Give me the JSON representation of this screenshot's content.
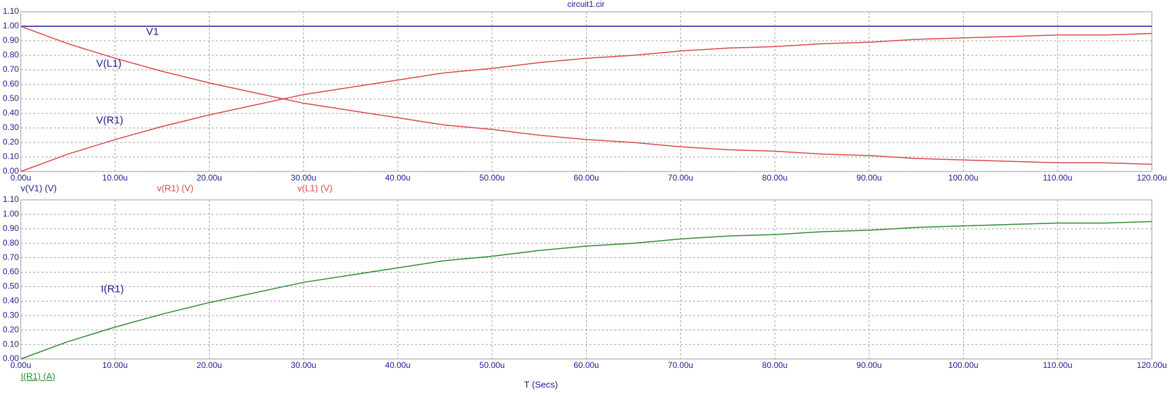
{
  "chart_data": [
    {
      "type": "line",
      "title": "circuit1.cir",
      "x": [
        0,
        5,
        10,
        15,
        20,
        25,
        30,
        35,
        40,
        45,
        50,
        55,
        60,
        65,
        70,
        75,
        80,
        85,
        90,
        95,
        100,
        105,
        110,
        115,
        120
      ],
      "series": [
        {
          "name": "v(V1) (V)",
          "color": "#1c1c8e",
          "values": [
            1.0,
            1.0,
            1.0,
            1.0,
            1.0,
            1.0,
            1.0,
            1.0,
            1.0,
            1.0,
            1.0,
            1.0,
            1.0,
            1.0,
            1.0,
            1.0,
            1.0,
            1.0,
            1.0,
            1.0,
            1.0,
            1.0,
            1.0,
            1.0,
            1.0
          ]
        },
        {
          "name": "v(R1) (V)",
          "color": "#d84848",
          "values": [
            0.0,
            0.12,
            0.22,
            0.31,
            0.39,
            0.46,
            0.53,
            0.58,
            0.63,
            0.68,
            0.71,
            0.75,
            0.78,
            0.8,
            0.83,
            0.85,
            0.86,
            0.88,
            0.89,
            0.91,
            0.92,
            0.93,
            0.94,
            0.94,
            0.95
          ]
        },
        {
          "name": "v(L1) (V)",
          "color": "#d84848",
          "values": [
            1.0,
            0.88,
            0.78,
            0.69,
            0.61,
            0.54,
            0.47,
            0.42,
            0.37,
            0.32,
            0.29,
            0.25,
            0.22,
            0.2,
            0.17,
            0.15,
            0.14,
            0.12,
            0.11,
            0.09,
            0.08,
            0.07,
            0.06,
            0.06,
            0.05
          ]
        }
      ],
      "annotations": [
        {
          "text": "V1",
          "x": 13.3,
          "y": 0.96
        },
        {
          "text": "V(L1)",
          "x": 8,
          "y": 0.74
        },
        {
          "text": "V(R1)",
          "x": 8,
          "y": 0.35
        }
      ],
      "xlim": [
        0,
        120
      ],
      "xticks": [
        {
          "value": 0,
          "label": "0.00u"
        },
        {
          "value": 10,
          "label": "10.00u"
        },
        {
          "value": 20,
          "label": "20.00u"
        },
        {
          "value": 30,
          "label": "30.00u"
        },
        {
          "value": 40,
          "label": "40.00u"
        },
        {
          "value": 50,
          "label": "50.00u"
        },
        {
          "value": 60,
          "label": "60.00u"
        },
        {
          "value": 70,
          "label": "70.00u"
        },
        {
          "value": 80,
          "label": "80.00u"
        },
        {
          "value": 90,
          "label": "90.00u"
        },
        {
          "value": 100,
          "label": "100.00u"
        },
        {
          "value": 110,
          "label": "110.00u"
        },
        {
          "value": 120,
          "label": "120.00u"
        }
      ],
      "ylim": [
        0,
        1.1
      ],
      "yticks": [
        {
          "value": 0,
          "label": "0.00"
        },
        {
          "value": 0.1,
          "label": "0.10"
        },
        {
          "value": 0.2,
          "label": "0.20"
        },
        {
          "value": 0.3,
          "label": "0.30"
        },
        {
          "value": 0.4,
          "label": "0.40"
        },
        {
          "value": 0.5,
          "label": "0.50"
        },
        {
          "value": 0.6,
          "label": "0.60"
        },
        {
          "value": 0.7,
          "label": "0.70"
        },
        {
          "value": 0.8,
          "label": "0.80"
        },
        {
          "value": 0.9,
          "label": "0.90"
        },
        {
          "value": 1.0,
          "label": "1.00"
        },
        {
          "value": 1.1,
          "label": "1.10"
        }
      ],
      "grid": true
    },
    {
      "type": "line",
      "xlabel": "T (Secs)",
      "x": [
        0,
        5,
        10,
        15,
        20,
        25,
        30,
        35,
        40,
        45,
        50,
        55,
        60,
        65,
        70,
        75,
        80,
        85,
        90,
        95,
        100,
        105,
        110,
        115,
        120
      ],
      "series": [
        {
          "name": "I(R1) (A)",
          "color": "#2f8a2f",
          "values": [
            0.0,
            0.12,
            0.22,
            0.31,
            0.39,
            0.46,
            0.53,
            0.58,
            0.63,
            0.68,
            0.71,
            0.75,
            0.78,
            0.8,
            0.83,
            0.85,
            0.86,
            0.88,
            0.89,
            0.91,
            0.92,
            0.93,
            0.94,
            0.94,
            0.95
          ]
        }
      ],
      "annotations": [
        {
          "text": "I(R1)",
          "x": 8.5,
          "y": 0.48
        }
      ],
      "xlim": [
        0,
        120
      ],
      "xticks": [
        {
          "value": 0,
          "label": "0.00u"
        },
        {
          "value": 10,
          "label": "10.00u"
        },
        {
          "value": 20,
          "label": "20.00u"
        },
        {
          "value": 30,
          "label": "30.00u"
        },
        {
          "value": 40,
          "label": "40.00u"
        },
        {
          "value": 50,
          "label": "50.00u"
        },
        {
          "value": 60,
          "label": "60.00u"
        },
        {
          "value": 70,
          "label": "70.00u"
        },
        {
          "value": 80,
          "label": "80.00u"
        },
        {
          "value": 90,
          "label": "90.00u"
        },
        {
          "value": 100,
          "label": "100.00u"
        },
        {
          "value": 110,
          "label": "110.00u"
        },
        {
          "value": 120,
          "label": "120.00u"
        }
      ],
      "ylim": [
        0,
        1.1
      ],
      "yticks": [
        {
          "value": 0,
          "label": "0.00"
        },
        {
          "value": 0.1,
          "label": "0.10"
        },
        {
          "value": 0.2,
          "label": "0.20"
        },
        {
          "value": 0.3,
          "label": "0.30"
        },
        {
          "value": 0.4,
          "label": "0.40"
        },
        {
          "value": 0.5,
          "label": "0.50"
        },
        {
          "value": 0.6,
          "label": "0.60"
        },
        {
          "value": 0.7,
          "label": "0.70"
        },
        {
          "value": 0.8,
          "label": "0.80"
        },
        {
          "value": 0.9,
          "label": "0.90"
        },
        {
          "value": 1.0,
          "label": "1.00"
        },
        {
          "value": 1.1,
          "label": "1.10"
        }
      ],
      "grid": true
    }
  ]
}
